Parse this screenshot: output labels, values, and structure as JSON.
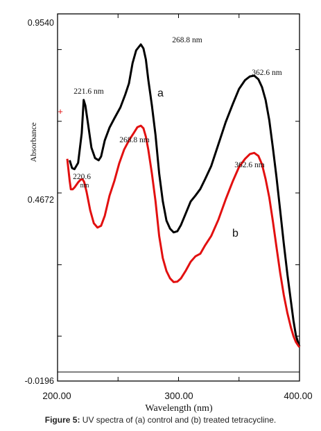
{
  "chart_data": {
    "type": "line",
    "title": "",
    "xlabel": "Wavelength (nm)",
    "ylabel": "Absorbance",
    "xlim": [
      200.0,
      400.0
    ],
    "ylim": [
      -0.0196,
      0.954
    ],
    "x_ticks_major": [
      200.0,
      300.0,
      400.0
    ],
    "x_tick_labels": [
      "200.00",
      "300.00",
      "400.00"
    ],
    "y_tick_labels": [
      "0.9540",
      "0.4672",
      "-0.0196"
    ],
    "y_ticks_labeled": [
      0.954,
      0.4672,
      -0.0196
    ],
    "y_ticks_minor": [
      0.857,
      0.662,
      0.272,
      0.078
    ],
    "x_ticks_minor": [
      250.0,
      350.0
    ],
    "grid": false,
    "series": [
      {
        "name": "a",
        "color": "#000000",
        "points": [
          [
            210,
            0.556
          ],
          [
            212,
            0.535
          ],
          [
            214,
            0.532
          ],
          [
            217,
            0.549
          ],
          [
            220,
            0.63
          ],
          [
            221.6,
            0.72
          ],
          [
            223,
            0.705
          ],
          [
            225,
            0.66
          ],
          [
            228,
            0.59
          ],
          [
            231,
            0.562
          ],
          [
            234,
            0.556
          ],
          [
            236,
            0.566
          ],
          [
            239,
            0.61
          ],
          [
            243,
            0.645
          ],
          [
            247,
            0.67
          ],
          [
            252,
            0.7
          ],
          [
            256,
            0.735
          ],
          [
            259,
            0.765
          ],
          [
            262,
            0.82
          ],
          [
            265,
            0.855
          ],
          [
            268.8,
            0.871
          ],
          [
            271,
            0.86
          ],
          [
            273,
            0.83
          ],
          [
            275,
            0.775
          ],
          [
            278,
            0.705
          ],
          [
            281,
            0.625
          ],
          [
            284,
            0.52
          ],
          [
            287,
            0.445
          ],
          [
            290,
            0.392
          ],
          [
            293,
            0.37
          ],
          [
            296,
            0.36
          ],
          [
            299,
            0.363
          ],
          [
            302,
            0.38
          ],
          [
            306,
            0.412
          ],
          [
            310,
            0.444
          ],
          [
            314,
            0.46
          ],
          [
            318,
            0.478
          ],
          [
            322,
            0.505
          ],
          [
            327,
            0.54
          ],
          [
            333,
            0.6
          ],
          [
            339,
            0.66
          ],
          [
            345,
            0.71
          ],
          [
            350,
            0.75
          ],
          [
            355,
            0.774
          ],
          [
            359,
            0.784
          ],
          [
            362.6,
            0.786
          ],
          [
            366,
            0.776
          ],
          [
            369,
            0.755
          ],
          [
            372,
            0.72
          ],
          [
            375,
            0.665
          ],
          [
            378,
            0.59
          ],
          [
            381,
            0.51
          ],
          [
            384,
            0.42
          ],
          [
            387,
            0.33
          ],
          [
            390,
            0.245
          ],
          [
            393,
            0.17
          ],
          [
            395,
            0.12
          ],
          [
            397,
            0.08
          ],
          [
            399,
            0.058
          ],
          [
            400,
            0.05
          ]
        ]
      },
      {
        "name": "b",
        "color": "#e21010",
        "points": [
          [
            208,
            0.56
          ],
          [
            210,
            0.5
          ],
          [
            211,
            0.477
          ],
          [
            212.5,
            0.477
          ],
          [
            214,
            0.482
          ],
          [
            217,
            0.496
          ],
          [
            219,
            0.503
          ],
          [
            220.6,
            0.505
          ],
          [
            222,
            0.497
          ],
          [
            224,
            0.47
          ],
          [
            227,
            0.42
          ],
          [
            230,
            0.385
          ],
          [
            233,
            0.373
          ],
          [
            236,
            0.378
          ],
          [
            239,
            0.405
          ],
          [
            243,
            0.46
          ],
          [
            247,
            0.5
          ],
          [
            251,
            0.548
          ],
          [
            255,
            0.585
          ],
          [
            259,
            0.61
          ],
          [
            263,
            0.63
          ],
          [
            266,
            0.646
          ],
          [
            268.8,
            0.65
          ],
          [
            271,
            0.643
          ],
          [
            273,
            0.62
          ],
          [
            275,
            0.585
          ],
          [
            278,
            0.52
          ],
          [
            281,
            0.445
          ],
          [
            284,
            0.35
          ],
          [
            287,
            0.29
          ],
          [
            290,
            0.255
          ],
          [
            293,
            0.235
          ],
          [
            296,
            0.225
          ],
          [
            299,
            0.226
          ],
          [
            302,
            0.235
          ],
          [
            306,
            0.256
          ],
          [
            310,
            0.28
          ],
          [
            314,
            0.295
          ],
          [
            318,
            0.302
          ],
          [
            322,
            0.325
          ],
          [
            327,
            0.35
          ],
          [
            333,
            0.395
          ],
          [
            339,
            0.45
          ],
          [
            345,
            0.5
          ],
          [
            350,
            0.538
          ],
          [
            355,
            0.56
          ],
          [
            359,
            0.573
          ],
          [
            362.6,
            0.576
          ],
          [
            366,
            0.568
          ],
          [
            369,
            0.545
          ],
          [
            372,
            0.505
          ],
          [
            375,
            0.455
          ],
          [
            378,
            0.39
          ],
          [
            381,
            0.32
          ],
          [
            384,
            0.25
          ],
          [
            387,
            0.19
          ],
          [
            390,
            0.14
          ],
          [
            393,
            0.1
          ],
          [
            395,
            0.078
          ],
          [
            397,
            0.062
          ],
          [
            399,
            0.052
          ],
          [
            400,
            0.048
          ]
        ]
      }
    ],
    "annotations": [
      {
        "text": "268.8 nm",
        "x": 268.8,
        "y": 0.871,
        "series": "a"
      },
      {
        "text": "221.6 nm",
        "x": 221.6,
        "y": 0.72,
        "series": "a"
      },
      {
        "text": "362.6 nm",
        "x": 362.6,
        "y": 0.786,
        "series": "a"
      },
      {
        "text": "a",
        "x": 285,
        "y": 0.74,
        "series": "a"
      },
      {
        "text": "268.8 nm",
        "x": 268.8,
        "y": 0.65,
        "series": "b"
      },
      {
        "text": "220.6",
        "x": 220.6,
        "y": 0.505,
        "series": "b"
      },
      {
        "text": "nm",
        "x": 220.6,
        "y": 0.505,
        "series": "b"
      },
      {
        "text": "362.6 nm",
        "x": 362.6,
        "y": 0.576,
        "series": "b"
      },
      {
        "text": "b",
        "x": 350,
        "y": 0.37,
        "series": "b"
      },
      {
        "text": "+",
        "x": 203,
        "y": 0.65,
        "series": "b"
      }
    ]
  },
  "caption": {
    "label": "Figure 5:",
    "text": " UV spectra of (a) control and (b) treated tetracycline."
  }
}
